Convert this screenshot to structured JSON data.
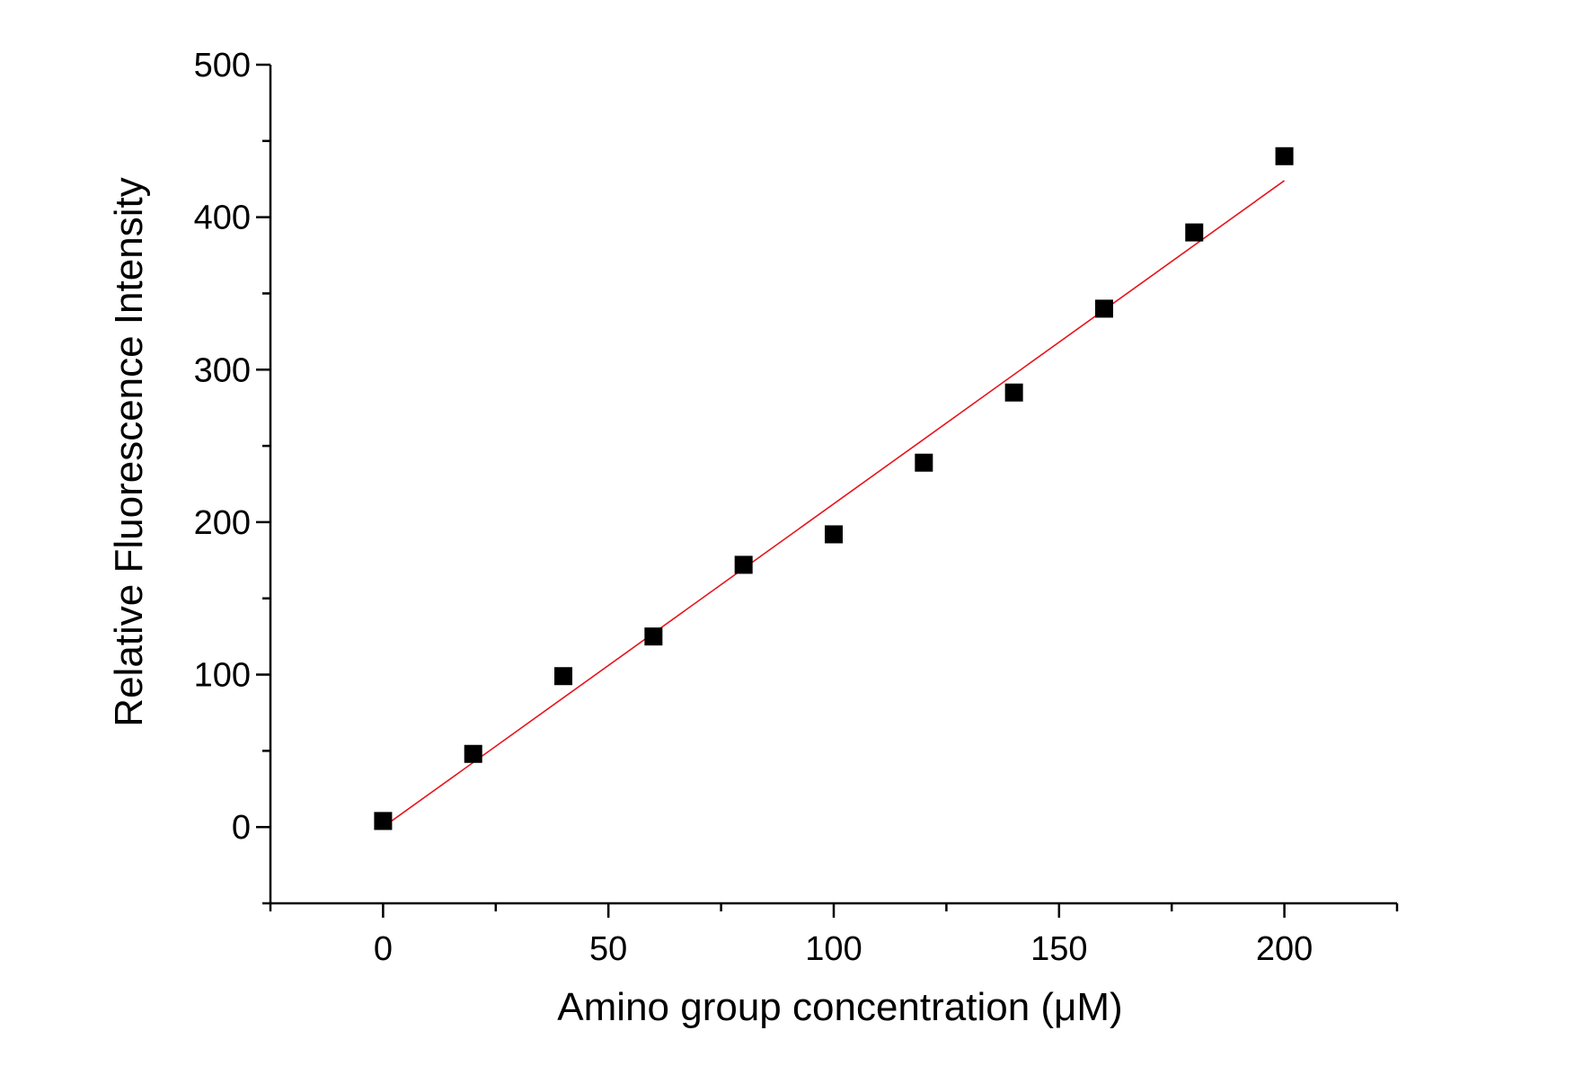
{
  "chart_data": {
    "type": "scatter",
    "title": "",
    "xlabel": "Amino group concentration (μM)",
    "ylabel": "Relative Fluorescence Intensity",
    "xlim": [
      -25,
      225
    ],
    "ylim": [
      -50,
      500
    ],
    "x_ticks": [
      0,
      50,
      100,
      150,
      200
    ],
    "y_ticks": [
      0,
      100,
      200,
      300,
      400,
      500
    ],
    "x_minor_step": 25,
    "y_minor_step": 50,
    "grid": false,
    "legend": "none",
    "marker": "square",
    "marker_color": "#000000",
    "fit_color": "#e8141b",
    "series": [
      {
        "x": [
          0,
          20,
          40,
          60,
          80,
          100,
          120,
          140,
          160,
          180,
          200
        ],
        "y": [
          4,
          48,
          99,
          125,
          172,
          192,
          239,
          285,
          340,
          390,
          440
        ]
      }
    ],
    "fit_line": {
      "x": [
        0,
        200
      ],
      "y": [
        0,
        424
      ]
    }
  }
}
